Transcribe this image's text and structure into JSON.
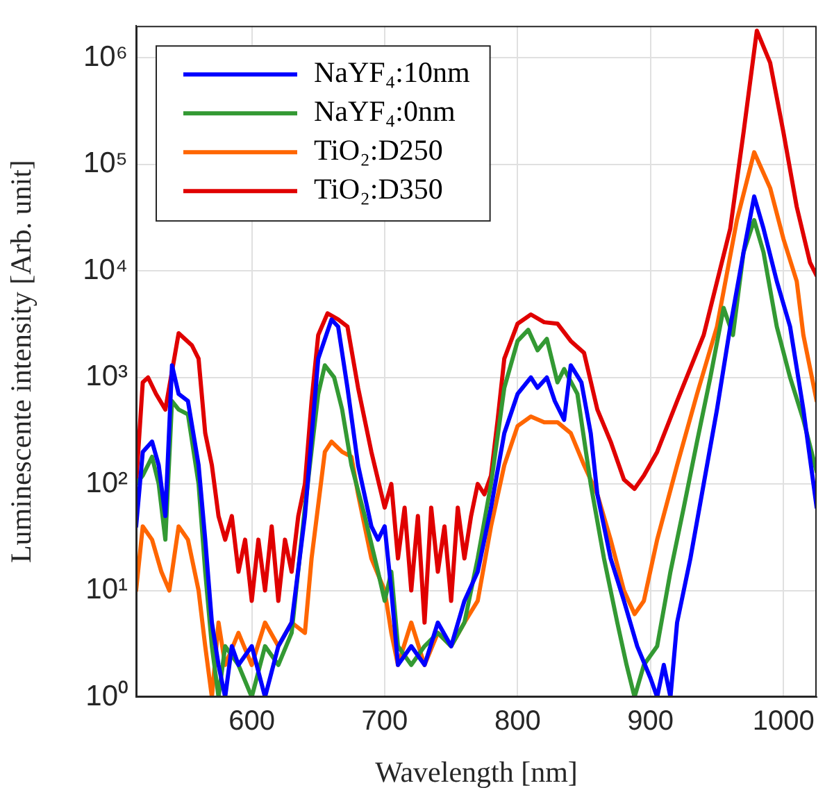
{
  "chart_data": {
    "type": "line",
    "xlabel": "Wavelength [nm]",
    "ylabel": "Luminescente intensity [Arb. unit]",
    "xlim": [
      513,
      1025
    ],
    "xticks": [
      600,
      700,
      800,
      900,
      1000
    ],
    "ylim": [
      1,
      2000000
    ],
    "log": "y",
    "yticks": [
      {
        "value": 1,
        "label": "10⁰"
      },
      {
        "value": 10,
        "label": "10¹"
      },
      {
        "value": 100,
        "label": "10²"
      },
      {
        "value": 1000,
        "label": "10³"
      },
      {
        "value": 10000,
        "label": "10⁴"
      },
      {
        "value": 100000,
        "label": "10⁵"
      },
      {
        "value": 1000000,
        "label": "10⁶"
      }
    ],
    "grid": true,
    "legend": "top left",
    "marker": "none",
    "line_style": "solid",
    "series": [
      {
        "name": "NaYF₄:10nm",
        "color": "#0000ff",
        "x": [
          513,
          518,
          525,
          530,
          535,
          540,
          545,
          552,
          560,
          565,
          570,
          575,
          580,
          585,
          590,
          600,
          610,
          620,
          630,
          640,
          650,
          660,
          665,
          672,
          680,
          690,
          695,
          700,
          705,
          710,
          720,
          730,
          740,
          750,
          760,
          770,
          780,
          790,
          800,
          810,
          815,
          822,
          828,
          835,
          840,
          848,
          855,
          860,
          870,
          880,
          890,
          900,
          905,
          910,
          915,
          920,
          930,
          940,
          950,
          960,
          970,
          978,
          985,
          995,
          1005,
          1015,
          1025
        ],
        "values": [
          40,
          200,
          250,
          150,
          50,
          1300,
          700,
          600,
          150,
          30,
          5,
          2,
          1,
          3,
          2,
          3,
          1,
          3,
          5,
          50,
          1500,
          3500,
          3000,
          800,
          150,
          40,
          30,
          40,
          10,
          2,
          3,
          2,
          5,
          3,
          8,
          15,
          60,
          300,
          700,
          1000,
          800,
          1000,
          600,
          400,
          1300,
          900,
          300,
          80,
          20,
          8,
          3,
          1.5,
          1,
          2,
          1,
          5,
          20,
          100,
          500,
          3000,
          15000,
          50000,
          25000,
          8000,
          3000,
          500,
          60
        ]
      },
      {
        "name": "NaYF₄:0nm",
        "color": "#339933",
        "x": [
          513,
          518,
          525,
          530,
          535,
          540,
          545,
          552,
          560,
          565,
          570,
          575,
          580,
          590,
          600,
          610,
          620,
          630,
          640,
          650,
          655,
          662,
          668,
          675,
          685,
          695,
          700,
          705,
          710,
          720,
          730,
          740,
          750,
          760,
          770,
          780,
          790,
          800,
          808,
          815,
          822,
          830,
          835,
          845,
          855,
          865,
          875,
          882,
          888,
          895,
          905,
          915,
          925,
          935,
          945,
          955,
          962,
          970,
          978,
          985,
          995,
          1005,
          1015,
          1025
        ],
        "values": [
          100,
          120,
          180,
          100,
          30,
          600,
          500,
          450,
          100,
          15,
          3,
          1,
          3,
          2,
          1,
          3,
          2,
          4,
          60,
          700,
          1300,
          1000,
          500,
          150,
          50,
          15,
          8,
          15,
          3,
          2,
          3,
          4,
          3,
          5,
          20,
          100,
          800,
          2200,
          2800,
          1800,
          2300,
          900,
          1200,
          700,
          100,
          20,
          5,
          2,
          1,
          2,
          3,
          15,
          60,
          250,
          1000,
          4500,
          2500,
          15000,
          30000,
          15000,
          3000,
          1000,
          400,
          130
        ]
      },
      {
        "name": "TiO₂:D250",
        "color": "#ff6600",
        "x": [
          513,
          518,
          525,
          532,
          538,
          545,
          552,
          560,
          565,
          570,
          575,
          580,
          590,
          600,
          610,
          620,
          630,
          640,
          645,
          655,
          660,
          668,
          675,
          680,
          690,
          700,
          705,
          710,
          720,
          730,
          740,
          750,
          760,
          770,
          780,
          790,
          800,
          810,
          820,
          830,
          840,
          850,
          860,
          870,
          880,
          888,
          895,
          905,
          920,
          935,
          950,
          965,
          978,
          990,
          1000,
          1010,
          1015,
          1025
        ],
        "values": [
          10,
          40,
          30,
          15,
          10,
          40,
          30,
          10,
          3,
          1,
          5,
          2,
          4,
          2,
          5,
          3,
          5,
          4,
          20,
          200,
          250,
          200,
          180,
          80,
          20,
          10,
          4,
          2,
          5,
          2,
          4,
          3,
          5,
          8,
          40,
          150,
          350,
          430,
          380,
          380,
          300,
          150,
          80,
          30,
          10,
          6,
          8,
          30,
          150,
          700,
          3000,
          30000,
          130000,
          60000,
          20000,
          8000,
          2500,
          600
        ]
      },
      {
        "name": "TiO₂:D350",
        "color": "#e00000",
        "x": [
          513,
          518,
          522,
          528,
          535,
          545,
          555,
          560,
          565,
          570,
          575,
          580,
          585,
          590,
          595,
          600,
          605,
          610,
          615,
          620,
          625,
          630,
          635,
          640,
          645,
          650,
          657,
          665,
          672,
          680,
          690,
          700,
          705,
          710,
          715,
          720,
          725,
          730,
          735,
          740,
          745,
          750,
          755,
          760,
          765,
          770,
          775,
          780,
          785,
          790,
          800,
          810,
          820,
          830,
          840,
          850,
          860,
          870,
          880,
          888,
          895,
          905,
          920,
          940,
          960,
          970,
          980,
          990,
          1000,
          1010,
          1020,
          1025
        ],
        "values": [
          100,
          900,
          1000,
          700,
          500,
          2600,
          2000,
          1500,
          300,
          150,
          50,
          30,
          50,
          15,
          30,
          8,
          30,
          10,
          40,
          8,
          30,
          15,
          50,
          100,
          600,
          2500,
          4000,
          3500,
          3000,
          800,
          200,
          60,
          100,
          20,
          60,
          10,
          50,
          5,
          60,
          15,
          40,
          8,
          60,
          20,
          50,
          100,
          80,
          120,
          400,
          1500,
          3200,
          3900,
          3300,
          3200,
          2200,
          1700,
          500,
          250,
          110,
          90,
          120,
          200,
          600,
          2500,
          25000,
          200000,
          1800000,
          900000,
          200000,
          40000,
          12000,
          9000
        ]
      }
    ]
  }
}
